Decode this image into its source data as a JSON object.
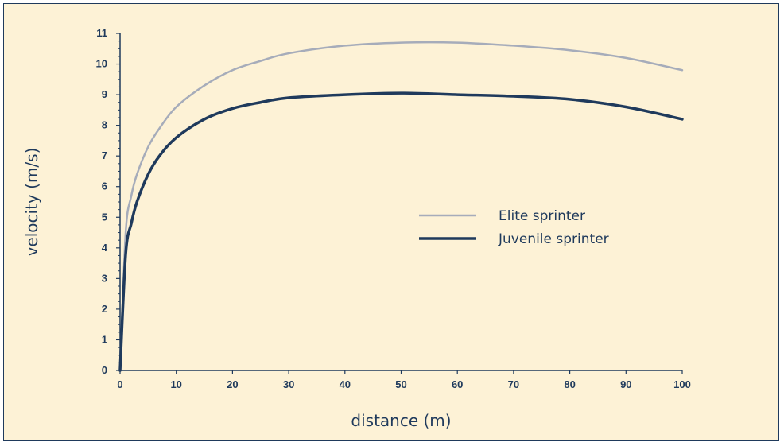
{
  "chart_data": {
    "type": "line",
    "title": "",
    "xlabel": "distance (m)",
    "ylabel": "velocity (m/s)",
    "xlim": [
      0,
      100
    ],
    "ylim": [
      0,
      11
    ],
    "x_ticks": [
      0,
      10,
      20,
      30,
      40,
      50,
      60,
      70,
      80,
      90,
      100
    ],
    "y_ticks": [
      0,
      1,
      2,
      3,
      4,
      5,
      6,
      7,
      8,
      9,
      10,
      11
    ],
    "grid": false,
    "legend_position": "center-right",
    "series": [
      {
        "name": "Elite sprinter",
        "color": "#a6acba",
        "x": [
          0,
          1,
          2,
          3,
          5,
          7,
          10,
          15,
          20,
          25,
          30,
          40,
          50,
          60,
          70,
          80,
          90,
          100
        ],
        "y": [
          0,
          4.5,
          5.7,
          6.4,
          7.3,
          7.9,
          8.6,
          9.3,
          9.8,
          10.1,
          10.35,
          10.6,
          10.7,
          10.7,
          10.6,
          10.45,
          10.2,
          9.8
        ]
      },
      {
        "name": "Juvenile sprinter",
        "color": "#1f3a5c",
        "x": [
          0,
          1,
          2,
          3,
          5,
          7,
          10,
          15,
          20,
          25,
          30,
          40,
          50,
          60,
          70,
          80,
          90,
          100
        ],
        "y": [
          0,
          3.8,
          4.8,
          5.5,
          6.4,
          7.0,
          7.6,
          8.2,
          8.55,
          8.75,
          8.9,
          9.0,
          9.05,
          9.0,
          8.95,
          8.85,
          8.6,
          8.2
        ]
      }
    ]
  }
}
